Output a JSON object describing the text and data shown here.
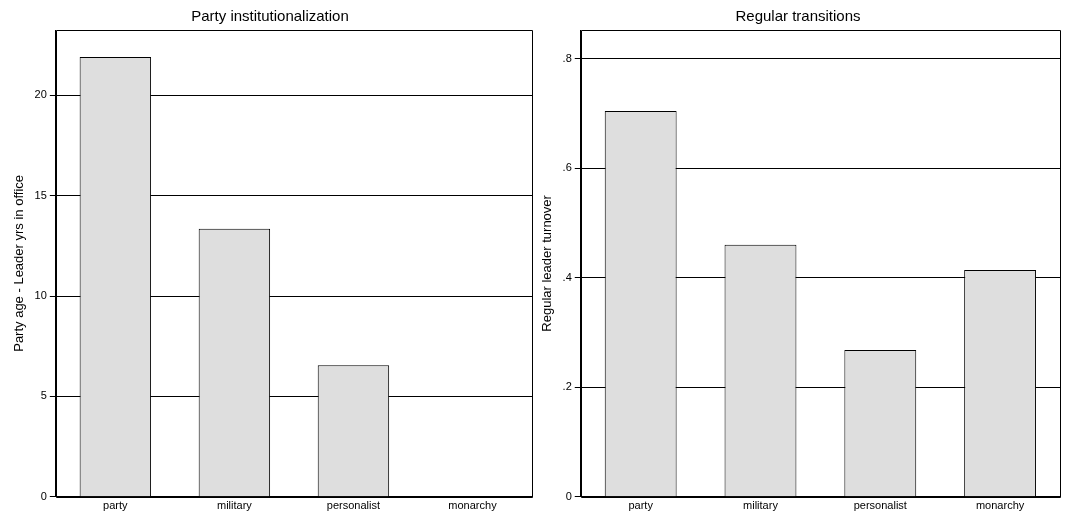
{
  "chart_data": [
    {
      "type": "bar",
      "title": "Party institutionalization",
      "ylabel": "Party age - Leader yrs in office",
      "categories": [
        "party",
        "military",
        "personalist",
        "monarchy"
      ],
      "values": [
        21.9,
        13.35,
        6.55,
        null
      ],
      "color": "#dedede",
      "ylim": [
        0,
        23.25
      ],
      "yticks": [
        0,
        5,
        10,
        15,
        20
      ],
      "grid": "y",
      "legend": false
    },
    {
      "type": "bar",
      "title": "Regular transitions",
      "ylabel": "Regular leader turnover",
      "categories": [
        "party",
        "military",
        "personalist",
        "monarchy"
      ],
      "values": [
        0.704,
        0.46,
        0.268,
        0.414
      ],
      "color": "#dedede",
      "ylim": [
        0,
        0.852
      ],
      "yticks": [
        {
          "value": 0,
          "label": "0"
        },
        {
          "value": 0.2,
          "label": ".2"
        },
        {
          "value": 0.4,
          "label": ".4"
        },
        {
          "value": 0.6,
          "label": ".6"
        },
        {
          "value": 0.8,
          "label": ".8"
        }
      ],
      "grid": "y",
      "legend": false
    }
  ]
}
